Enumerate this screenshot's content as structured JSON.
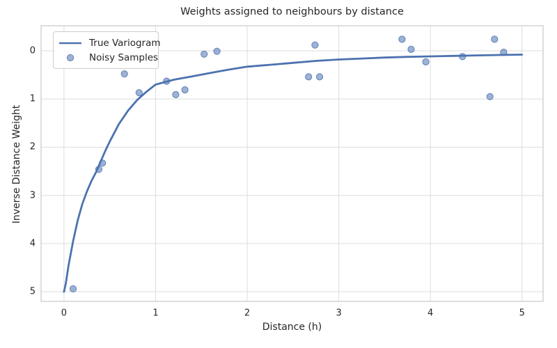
{
  "chart_data": {
    "type": "scatter",
    "title": "Weights assigned to neighbours by distance",
    "xlabel": "Distance (h)",
    "ylabel": "Inverse Distance Weight",
    "grid": true,
    "legend_position": "upper left",
    "x_ticks": [
      0,
      1,
      2,
      3,
      4,
      5
    ],
    "y_ticks": [
      0,
      1,
      2,
      3,
      4,
      5
    ],
    "xlim": [
      -0.25,
      5.23
    ],
    "ylim": [
      -0.52,
      5.2
    ],
    "y_axis_inverted": true,
    "series": [
      {
        "name": "True Variogram",
        "type": "line",
        "points": [
          [
            0.0,
            5.0
          ],
          [
            0.02,
            4.83
          ],
          [
            0.05,
            4.45
          ],
          [
            0.1,
            3.95
          ],
          [
            0.15,
            3.52
          ],
          [
            0.2,
            3.18
          ],
          [
            0.25,
            2.92
          ],
          [
            0.3,
            2.7
          ],
          [
            0.35,
            2.52
          ],
          [
            0.4,
            2.3
          ],
          [
            0.45,
            2.08
          ],
          [
            0.5,
            1.88
          ],
          [
            0.6,
            1.52
          ],
          [
            0.7,
            1.24
          ],
          [
            0.8,
            1.02
          ],
          [
            0.9,
            0.85
          ],
          [
            1.0,
            0.7
          ],
          [
            1.2,
            0.6
          ],
          [
            1.4,
            0.53
          ],
          [
            1.6,
            0.46
          ],
          [
            1.8,
            0.39
          ],
          [
            2.0,
            0.33
          ],
          [
            2.25,
            0.29
          ],
          [
            2.5,
            0.25
          ],
          [
            2.75,
            0.21
          ],
          [
            3.0,
            0.18
          ],
          [
            3.25,
            0.16
          ],
          [
            3.5,
            0.14
          ],
          [
            3.75,
            0.125
          ],
          [
            4.0,
            0.115
          ],
          [
            4.25,
            0.105
          ],
          [
            4.5,
            0.095
          ],
          [
            4.75,
            0.087
          ],
          [
            5.0,
            0.08
          ]
        ]
      },
      {
        "name": "Noisy Samples",
        "type": "scatter",
        "points": [
          [
            0.1,
            4.94
          ],
          [
            0.38,
            2.46
          ],
          [
            0.42,
            2.33
          ],
          [
            0.66,
            0.48
          ],
          [
            0.82,
            0.87
          ],
          [
            1.12,
            0.63
          ],
          [
            1.22,
            0.91
          ],
          [
            1.32,
            0.81
          ],
          [
            1.53,
            0.07
          ],
          [
            1.67,
            0.01
          ],
          [
            2.67,
            0.54
          ],
          [
            2.74,
            -0.12
          ],
          [
            2.79,
            0.54
          ],
          [
            3.69,
            -0.24
          ],
          [
            3.79,
            -0.03
          ],
          [
            3.95,
            0.23
          ],
          [
            4.35,
            0.12
          ],
          [
            4.65,
            0.95
          ],
          [
            4.7,
            -0.24
          ],
          [
            4.8,
            0.03
          ]
        ]
      }
    ]
  },
  "colors": {
    "line": "#4C72B0",
    "marker_fill": "#4C72B0",
    "grid": "#DDDDDD",
    "spine": "#CBCBCB",
    "text": "#262626"
  }
}
